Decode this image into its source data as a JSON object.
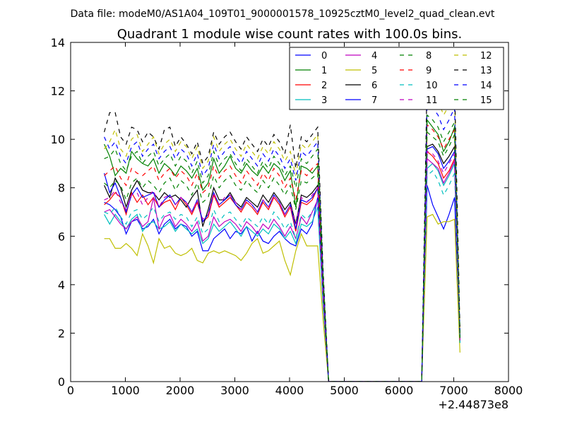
{
  "figure": {
    "suptitle": "Data file: modeM0/AS1A04_109T01_9000001578_10925cztM0_level2_quad_clean.evt",
    "title": "Quadrant 1 module wise count rates with 100.0s bins.",
    "x_offset_label": "+2.44873e8"
  },
  "chart_data": {
    "type": "line",
    "title": "Quadrant 1 module wise count rates with 100.0s bins.",
    "xlabel": "",
    "ylabel": "",
    "x_offset": 244873000,
    "xlim": [
      0,
      8000
    ],
    "ylim": [
      0,
      14
    ],
    "xticks": [
      0,
      1000,
      2000,
      3000,
      4000,
      5000,
      6000,
      7000,
      8000
    ],
    "yticks": [
      0,
      2,
      4,
      6,
      8,
      10,
      12,
      14
    ],
    "grid": false,
    "legend_position": "top-right",
    "x": [
      614,
      714,
      814,
      914,
      1014,
      1114,
      1214,
      1314,
      1414,
      1514,
      1614,
      1714,
      1814,
      1914,
      2014,
      2114,
      2214,
      2314,
      2414,
      2514,
      2614,
      2714,
      2814,
      2914,
      3014,
      3114,
      3214,
      3314,
      3414,
      3514,
      3614,
      3714,
      3814,
      3914,
      4014,
      4114,
      4214,
      4314,
      4414,
      4514,
      4614,
      4714,
      4814,
      4914,
      5014,
      5114,
      5214,
      5314,
      5414,
      5514,
      5614,
      5714,
      5814,
      5914,
      6014,
      6114,
      6214,
      6314,
      6414,
      6514,
      6614,
      6714,
      6814,
      6914,
      7014,
      7114
    ],
    "series": [
      {
        "name": "0",
        "color": "#0000ff",
        "dash": "solid",
        "values": [
          7.4,
          7.3,
          7.1,
          6.8,
          6.1,
          6.6,
          6.7,
          6.3,
          6.4,
          6.7,
          6.1,
          6.5,
          6.7,
          6.3,
          6.5,
          6.4,
          6.0,
          6.2,
          5.4,
          5.4,
          5.9,
          6.1,
          6.3,
          5.9,
          6.2,
          6.1,
          6.4,
          5.8,
          6.2,
          5.8,
          5.7,
          6.0,
          6.2,
          5.9,
          5.7,
          5.6,
          6.3,
          6.1,
          6.5,
          7.6,
          3.2,
          0,
          0,
          0,
          0,
          0,
          0,
          0,
          0,
          0,
          0,
          0,
          0,
          0,
          0,
          0,
          0,
          0,
          0,
          8.1,
          7.3,
          6.8,
          6.3,
          6.9,
          7.6,
          1.6
        ]
      },
      {
        "name": "1",
        "color": "#008000",
        "dash": "solid",
        "values": [
          9.8,
          9.3,
          8.5,
          8.8,
          8.6,
          9.5,
          9.2,
          9.0,
          8.9,
          9.2,
          8.6,
          9.0,
          8.8,
          8.5,
          8.9,
          8.7,
          8.4,
          8.8,
          7.9,
          8.2,
          9.2,
          8.6,
          8.9,
          9.3,
          8.8,
          8.6,
          9.0,
          8.7,
          8.5,
          8.9,
          8.6,
          9.0,
          8.8,
          8.3,
          8.7,
          7.2,
          8.9,
          8.8,
          8.6,
          8.9,
          4.0,
          0,
          0,
          0,
          0,
          0,
          0,
          0,
          0,
          0,
          0,
          0,
          0,
          0,
          0,
          0,
          0,
          0,
          0,
          10.8,
          10.5,
          10.2,
          9.5,
          9.9,
          10.5,
          1.8
        ]
      },
      {
        "name": "2",
        "color": "#ff0000",
        "dash": "solid",
        "values": [
          7.3,
          7.5,
          7.8,
          7.6,
          6.9,
          7.8,
          7.4,
          7.7,
          7.3,
          7.6,
          7.2,
          7.4,
          7.5,
          7.1,
          7.6,
          7.3,
          6.9,
          7.4,
          6.6,
          6.8,
          7.7,
          7.2,
          7.4,
          7.6,
          7.3,
          7.0,
          7.4,
          7.2,
          6.9,
          7.4,
          7.1,
          7.6,
          7.3,
          6.8,
          7.2,
          6.2,
          7.4,
          7.3,
          7.5,
          8.0,
          3.5,
          0,
          0,
          0,
          0,
          0,
          0,
          0,
          0,
          0,
          0,
          0,
          0,
          0,
          0,
          0,
          0,
          0,
          0,
          9.5,
          9.3,
          9.0,
          8.4,
          8.7,
          9.2,
          1.7
        ]
      },
      {
        "name": "3",
        "color": "#00bfbf",
        "dash": "solid",
        "values": [
          6.9,
          6.5,
          6.9,
          6.6,
          6.3,
          6.7,
          6.9,
          6.2,
          6.5,
          6.6,
          6.3,
          6.4,
          6.6,
          6.2,
          6.5,
          6.3,
          6.1,
          6.3,
          5.7,
          5.9,
          6.5,
          6.2,
          6.4,
          6.6,
          6.3,
          6.0,
          6.4,
          6.2,
          6.0,
          6.3,
          6.1,
          6.5,
          6.3,
          5.9,
          6.2,
          5.7,
          6.5,
          6.4,
          6.6,
          7.2,
          3.1,
          0,
          0,
          0,
          0,
          0,
          0,
          0,
          0,
          0,
          0,
          0,
          0,
          0,
          0,
          0,
          0,
          0,
          0,
          8.8,
          9.0,
          8.7,
          8.1,
          8.5,
          9.0,
          1.6
        ]
      },
      {
        "name": "4",
        "color": "#bf00bf",
        "dash": "solid",
        "values": [
          7.0,
          7.1,
          6.8,
          6.5,
          6.3,
          6.6,
          6.8,
          6.4,
          6.6,
          7.6,
          6.3,
          6.8,
          6.9,
          6.4,
          6.7,
          6.5,
          6.2,
          6.6,
          5.8,
          6.0,
          6.8,
          6.4,
          6.6,
          6.7,
          6.5,
          6.2,
          6.6,
          6.4,
          6.1,
          6.5,
          6.3,
          6.7,
          6.4,
          6.0,
          6.4,
          5.9,
          6.8,
          6.5,
          7.0,
          7.5,
          3.3,
          0,
          0,
          0,
          0,
          0,
          0,
          0,
          0,
          0,
          0,
          0,
          0,
          0,
          0,
          0,
          0,
          0,
          0,
          9.2,
          9.0,
          8.8,
          8.2,
          8.6,
          9.1,
          1.7
        ]
      },
      {
        "name": "5",
        "color": "#bfbf00",
        "dash": "solid",
        "values": [
          5.9,
          5.9,
          5.5,
          5.5,
          5.7,
          5.5,
          5.2,
          6.1,
          5.6,
          4.9,
          5.9,
          5.5,
          5.6,
          5.3,
          5.2,
          5.3,
          5.5,
          5.0,
          4.9,
          5.3,
          5.4,
          5.3,
          5.4,
          5.3,
          5.2,
          5.0,
          5.3,
          5.7,
          5.9,
          5.3,
          5.4,
          5.6,
          5.8,
          5.0,
          4.4,
          5.4,
          6.1,
          5.6,
          5.6,
          5.6,
          2.5,
          0,
          0,
          0,
          0,
          0,
          0,
          0,
          0,
          0,
          0,
          0,
          0,
          0,
          0,
          0,
          0,
          0,
          0,
          6.8,
          6.9,
          6.5,
          6.6,
          6.6,
          6.7,
          1.2
        ]
      },
      {
        "name": "6",
        "color": "#000000",
        "dash": "solid",
        "values": [
          8.1,
          7.6,
          8.4,
          8.0,
          7.2,
          7.9,
          8.3,
          7.9,
          7.8,
          7.8,
          7.5,
          7.8,
          7.6,
          7.7,
          7.5,
          7.2,
          7.6,
          7.9,
          6.4,
          7.1,
          8.0,
          7.5,
          7.5,
          7.8,
          7.4,
          7.2,
          7.6,
          7.4,
          7.2,
          7.7,
          7.4,
          7.8,
          7.5,
          7.1,
          7.4,
          6.5,
          7.7,
          7.6,
          7.8,
          8.1,
          3.6,
          0,
          0,
          0,
          0,
          0,
          0,
          0,
          0,
          0,
          0,
          0,
          0,
          0,
          0,
          0,
          0,
          0,
          0,
          9.7,
          9.8,
          9.5,
          9.0,
          9.3,
          9.7,
          1.8
        ]
      },
      {
        "name": "7",
        "color": "#0000ff",
        "dash": "solid",
        "values": [
          8.6,
          7.8,
          8.2,
          7.6,
          7.0,
          7.7,
          8.0,
          7.6,
          7.7,
          7.8,
          7.2,
          7.5,
          7.7,
          7.3,
          7.6,
          7.4,
          7.0,
          7.5,
          6.6,
          6.9,
          7.8,
          7.3,
          7.5,
          7.7,
          7.3,
          7.1,
          7.5,
          7.3,
          7.0,
          7.5,
          7.2,
          7.7,
          7.4,
          6.9,
          7.3,
          6.3,
          7.5,
          7.4,
          7.6,
          8.0,
          3.5,
          0,
          0,
          0,
          0,
          0,
          0,
          0,
          0,
          0,
          0,
          0,
          0,
          0,
          0,
          0,
          0,
          0,
          0,
          9.6,
          9.7,
          9.4,
          8.8,
          9.1,
          9.5,
          1.8
        ]
      },
      {
        "name": "8",
        "color": "#008000",
        "dash": "dashed",
        "values": [
          8.2,
          8.0,
          8.3,
          8.1,
          7.5,
          8.2,
          8.4,
          8.0,
          8.3,
          8.1,
          7.8,
          8.2,
          8.4,
          7.9,
          8.3,
          8.1,
          7.7,
          8.2,
          7.4,
          7.6,
          8.5,
          8.0,
          8.3,
          8.5,
          8.1,
          7.9,
          8.3,
          8.0,
          7.8,
          8.3,
          8.0,
          8.4,
          8.1,
          7.7,
          8.1,
          7.1,
          8.3,
          8.2,
          8.4,
          8.6,
          3.8,
          0,
          0,
          0,
          0,
          0,
          0,
          0,
          0,
          0,
          0,
          0,
          0,
          0,
          0,
          0,
          0,
          0,
          0,
          10.3,
          10.1,
          9.9,
          9.3,
          9.7,
          10.2,
          1.8
        ]
      },
      {
        "name": "9",
        "color": "#ff0000",
        "dash": "dashed",
        "values": [
          8.5,
          8.7,
          8.9,
          8.4,
          8.1,
          8.8,
          8.6,
          8.5,
          8.7,
          8.9,
          8.3,
          8.6,
          8.8,
          8.4,
          8.7,
          8.5,
          8.1,
          8.6,
          7.8,
          8.0,
          8.9,
          8.4,
          8.7,
          8.9,
          8.5,
          8.2,
          8.7,
          8.4,
          8.1,
          8.6,
          8.3,
          8.8,
          8.5,
          8.0,
          8.4,
          7.5,
          8.7,
          8.5,
          8.8,
          9.0,
          3.9,
          0,
          0,
          0,
          0,
          0,
          0,
          0,
          0,
          0,
          0,
          0,
          0,
          0,
          0,
          0,
          0,
          0,
          0,
          10.6,
          10.4,
          10.1,
          9.6,
          10.0,
          10.4,
          1.8
        ]
      },
      {
        "name": "10",
        "color": "#00bfbf",
        "dash": "dashed",
        "values": [
          7.0,
          6.9,
          7.2,
          6.8,
          6.5,
          7.0,
          7.1,
          6.7,
          6.9,
          7.2,
          6.6,
          6.9,
          7.0,
          6.7,
          6.9,
          6.8,
          6.4,
          6.8,
          6.1,
          6.3,
          7.1,
          6.6,
          6.9,
          7.0,
          6.7,
          6.4,
          6.8,
          6.6,
          6.4,
          6.8,
          6.5,
          7.0,
          6.7,
          6.3,
          6.6,
          5.9,
          6.9,
          6.7,
          7.0,
          7.4,
          3.2,
          0,
          0,
          0,
          0,
          0,
          0,
          0,
          0,
          0,
          0,
          0,
          0,
          0,
          0,
          0,
          0,
          0,
          0,
          8.5,
          8.7,
          8.3,
          7.7,
          8.1,
          8.6,
          1.6
        ]
      },
      {
        "name": "11",
        "color": "#bf00bf",
        "dash": "dashed",
        "values": [
          7.5,
          7.6,
          7.9,
          7.4,
          7.1,
          7.7,
          7.8,
          7.3,
          7.6,
          7.9,
          7.2,
          7.6,
          7.7,
          7.3,
          7.6,
          7.4,
          7.0,
          7.5,
          6.7,
          6.9,
          7.8,
          7.3,
          7.6,
          7.7,
          7.4,
          7.1,
          7.5,
          7.3,
          7.0,
          7.5,
          7.2,
          7.7,
          7.4,
          6.9,
          7.3,
          6.5,
          7.6,
          7.4,
          7.7,
          8.0,
          3.5,
          0,
          0,
          0,
          0,
          0,
          0,
          0,
          0,
          0,
          0,
          0,
          0,
          0,
          0,
          0,
          0,
          0,
          0,
          9.5,
          9.4,
          9.1,
          8.6,
          9.0,
          9.4,
          1.7
        ]
      },
      {
        "name": "12",
        "color": "#bfbf00",
        "dash": "dashed",
        "values": [
          9.6,
          9.9,
          10.4,
          9.6,
          9.3,
          10.0,
          10.2,
          9.5,
          9.8,
          10.1,
          9.4,
          9.8,
          10.0,
          9.5,
          9.9,
          9.7,
          9.2,
          9.7,
          8.8,
          9.1,
          10.1,
          9.5,
          9.8,
          10.0,
          9.6,
          9.3,
          9.8,
          9.5,
          9.2,
          9.7,
          9.4,
          9.9,
          9.6,
          9.1,
          9.5,
          8.5,
          9.8,
          9.6,
          9.9,
          10.2,
          4.4,
          0,
          0,
          0,
          0,
          0,
          0,
          0,
          0,
          0,
          0,
          0,
          0,
          0,
          0,
          0,
          0,
          0,
          0,
          12.2,
          11.9,
          11.6,
          11.0,
          11.4,
          11.9,
          2.0
        ]
      },
      {
        "name": "13",
        "color": "#000000",
        "dash": "dashed",
        "values": [
          10.3,
          11.1,
          11.1,
          10.1,
          9.8,
          10.5,
          10.4,
          9.9,
          10.3,
          10.1,
          9.6,
          10.4,
          10.5,
          9.7,
          10.1,
          9.8,
          9.4,
          9.9,
          9.0,
          9.3,
          10.3,
          9.8,
          10.1,
          10.3,
          9.9,
          9.6,
          10.1,
          9.8,
          9.5,
          10.0,
          9.7,
          10.2,
          9.9,
          9.4,
          10.6,
          8.8,
          10.1,
          9.9,
          10.2,
          10.5,
          4.5,
          0,
          0,
          0,
          0,
          0,
          0,
          0,
          0,
          0,
          0,
          0,
          0,
          0,
          0,
          0,
          0,
          0,
          0,
          12.7,
          12.3,
          12.0,
          11.4,
          11.8,
          12.3,
          2.1
        ]
      },
      {
        "name": "14",
        "color": "#0000ff",
        "dash": "dashed",
        "values": [
          10.1,
          9.6,
          9.9,
          9.3,
          9.0,
          9.7,
          9.9,
          9.3,
          9.6,
          9.8,
          9.2,
          9.5,
          9.7,
          9.2,
          9.6,
          9.4,
          8.9,
          9.4,
          8.5,
          8.8,
          9.8,
          9.2,
          9.5,
          9.7,
          9.3,
          9.0,
          9.5,
          9.2,
          8.9,
          9.4,
          9.1,
          9.6,
          9.3,
          8.8,
          9.2,
          8.3,
          9.5,
          9.3,
          9.6,
          9.9,
          4.3,
          0,
          0,
          0,
          0,
          0,
          0,
          0,
          0,
          0,
          0,
          0,
          0,
          0,
          0,
          0,
          0,
          0,
          0,
          11.6,
          11.3,
          11.0,
          10.4,
          10.8,
          11.3,
          1.9
        ]
      },
      {
        "name": "15",
        "color": "#008000",
        "dash": "dashed",
        "values": [
          9.2,
          9.3,
          9.6,
          9.0,
          8.7,
          9.3,
          9.5,
          9.0,
          9.3,
          9.5,
          8.9,
          9.2,
          9.4,
          8.9,
          9.3,
          9.1,
          8.6,
          9.1,
          8.2,
          8.5,
          9.5,
          8.9,
          9.2,
          9.4,
          9.0,
          8.7,
          9.2,
          8.9,
          8.6,
          9.1,
          8.8,
          9.3,
          9.0,
          8.5,
          8.9,
          8.0,
          9.2,
          9.0,
          9.3,
          9.6,
          4.2,
          0,
          0,
          0,
          0,
          0,
          0,
          0,
          0,
          0,
          0,
          0,
          0,
          0,
          0,
          0,
          0,
          0,
          0,
          11.0,
          10.8,
          10.5,
          9.9,
          10.3,
          10.7,
          1.9
        ]
      }
    ]
  }
}
